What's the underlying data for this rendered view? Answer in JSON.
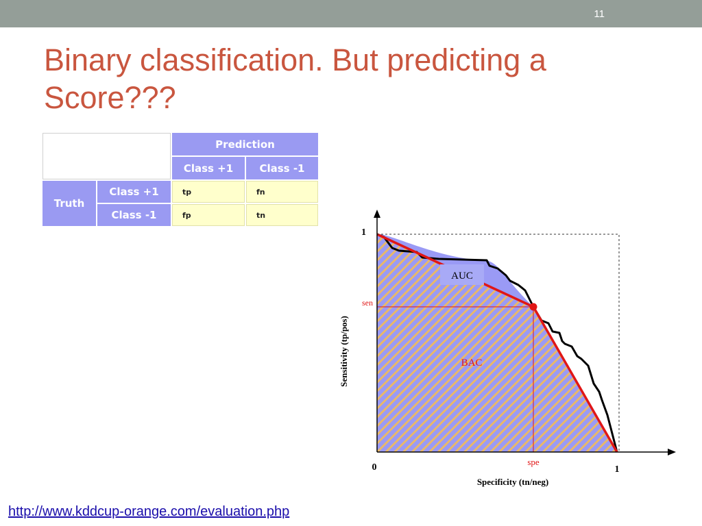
{
  "slide": {
    "page_number": "11",
    "title": "Binary classification. But predicting a Score???",
    "link": "http://www.kddcup-orange.com/evaluation.php"
  },
  "confusion_matrix": {
    "prediction_label": "Prediction",
    "truth_label": "Truth",
    "class_pos": "Class +1",
    "class_neg": "Class -1",
    "tp": "tp",
    "fn": "fn",
    "fp": "fp",
    "tn": "tn",
    "colors": {
      "header": "#9a9af2",
      "cell": "#ffffcc"
    }
  },
  "diagram": {
    "y_axis_label": "Sensitivity (tp/pos)",
    "x_axis_label": "Specificity (tn/neg)",
    "y_tick_top": "1",
    "origin": "0",
    "x_tick_right": "1",
    "sen_label": "sen",
    "spe_label": "spe",
    "auc_label": "AUC",
    "bac_label": "BAC",
    "colors": {
      "auc_fill": "#9a9af5",
      "bac_line": "#e01616",
      "hatch_stripe": "#e8b86a",
      "auc_box": "#a8aaf6"
    }
  }
}
